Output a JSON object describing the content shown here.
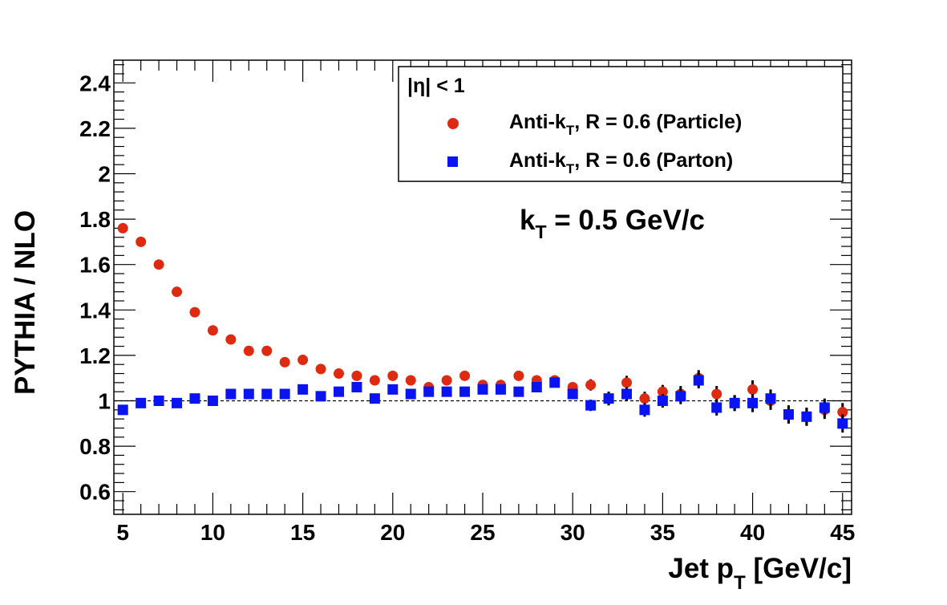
{
  "chart_data": {
    "type": "scatter",
    "xlabel": "Jet p",
    "xlabel_sub": "T",
    "xlabel_unit": " [GeV/c]",
    "ylabel": "PYTHIA / NLO",
    "xlim": [
      4.5,
      45.5
    ],
    "ylim": [
      0.5,
      2.5
    ],
    "x_ticks": [
      5,
      10,
      15,
      20,
      25,
      30,
      35,
      40,
      45
    ],
    "y_ticks": [
      0.6,
      0.8,
      1,
      1.2,
      1.4,
      1.6,
      1.8,
      2,
      2.2,
      2.4
    ],
    "x_tick_labels": [
      "5",
      "10",
      "15",
      "20",
      "25",
      "30",
      "35",
      "40",
      "45"
    ],
    "y_tick_labels": [
      "0.6",
      "0.8",
      "1",
      "1.2",
      "1.4",
      "1.6",
      "1.8",
      "2",
      "2.2",
      "2.4"
    ],
    "reference_line": 1.0,
    "annotation": {
      "main": "k",
      "sub": "T",
      "rest": " = 0.5 GeV/c"
    },
    "legend": {
      "header": "|η| < 1",
      "placement": "top-right",
      "entries": [
        {
          "series": "Particle",
          "pre": "Anti-k",
          "sub": "T",
          "post": ", R = 0.6 (Particle)"
        },
        {
          "series": "Parton",
          "pre": "Anti-k",
          "sub": "T",
          "post": ", R = 0.6 (Parton)"
        }
      ]
    },
    "series": [
      {
        "name": "Anti-kT, R = 0.6 (Particle)",
        "marker": "circle",
        "color": "#dd2a10",
        "x": [
          5,
          6,
          7,
          8,
          9,
          10,
          11,
          12,
          13,
          14,
          15,
          16,
          17,
          18,
          19,
          20,
          21,
          22,
          23,
          24,
          25,
          26,
          27,
          28,
          29,
          30,
          31,
          32,
          33,
          34,
          35,
          36,
          37,
          38,
          39,
          40,
          41,
          42,
          43,
          44,
          45
        ],
        "y": [
          1.76,
          1.7,
          1.6,
          1.48,
          1.39,
          1.31,
          1.27,
          1.22,
          1.22,
          1.17,
          1.18,
          1.14,
          1.12,
          1.11,
          1.09,
          1.11,
          1.09,
          1.06,
          1.09,
          1.11,
          1.07,
          1.07,
          1.11,
          1.09,
          1.09,
          1.06,
          1.07,
          1.01,
          1.08,
          1.01,
          1.04,
          1.03,
          1.1,
          1.03,
          0.99,
          1.05,
          1.0,
          0.94,
          0.93,
          0.96,
          0.95
        ],
        "err": [
          0.005,
          0.005,
          0.005,
          0.005,
          0.005,
          0.005,
          0.005,
          0.005,
          0.006,
          0.006,
          0.006,
          0.006,
          0.007,
          0.007,
          0.008,
          0.008,
          0.009,
          0.009,
          0.01,
          0.01,
          0.012,
          0.012,
          0.014,
          0.015,
          0.017,
          0.02,
          0.025,
          0.03,
          0.03,
          0.03,
          0.03,
          0.035,
          0.035,
          0.035,
          0.035,
          0.04,
          0.04,
          0.04,
          0.04,
          0.04,
          0.04
        ]
      },
      {
        "name": "Anti-kT, R = 0.6 (Parton)",
        "marker": "square",
        "color": "#0a14f0",
        "x": [
          5,
          6,
          7,
          8,
          9,
          10,
          11,
          12,
          13,
          14,
          15,
          16,
          17,
          18,
          19,
          20,
          21,
          22,
          23,
          24,
          25,
          26,
          27,
          28,
          29,
          30,
          31,
          32,
          33,
          34,
          35,
          36,
          37,
          38,
          39,
          40,
          41,
          42,
          43,
          44,
          45
        ],
        "y": [
          0.96,
          0.99,
          1.0,
          0.99,
          1.01,
          1.0,
          1.03,
          1.03,
          1.03,
          1.03,
          1.05,
          1.02,
          1.04,
          1.06,
          1.01,
          1.05,
          1.03,
          1.04,
          1.04,
          1.04,
          1.05,
          1.05,
          1.04,
          1.06,
          1.08,
          1.03,
          0.98,
          1.01,
          1.03,
          0.96,
          1.0,
          1.02,
          1.09,
          0.97,
          0.99,
          0.99,
          1.01,
          0.94,
          0.93,
          0.97,
          0.9
        ],
        "err": [
          0.005,
          0.005,
          0.005,
          0.005,
          0.005,
          0.005,
          0.005,
          0.005,
          0.006,
          0.006,
          0.006,
          0.006,
          0.007,
          0.007,
          0.008,
          0.008,
          0.009,
          0.009,
          0.01,
          0.01,
          0.012,
          0.012,
          0.014,
          0.015,
          0.017,
          0.02,
          0.025,
          0.03,
          0.03,
          0.03,
          0.03,
          0.035,
          0.035,
          0.035,
          0.035,
          0.04,
          0.04,
          0.04,
          0.04,
          0.04,
          0.04
        ]
      }
    ]
  }
}
